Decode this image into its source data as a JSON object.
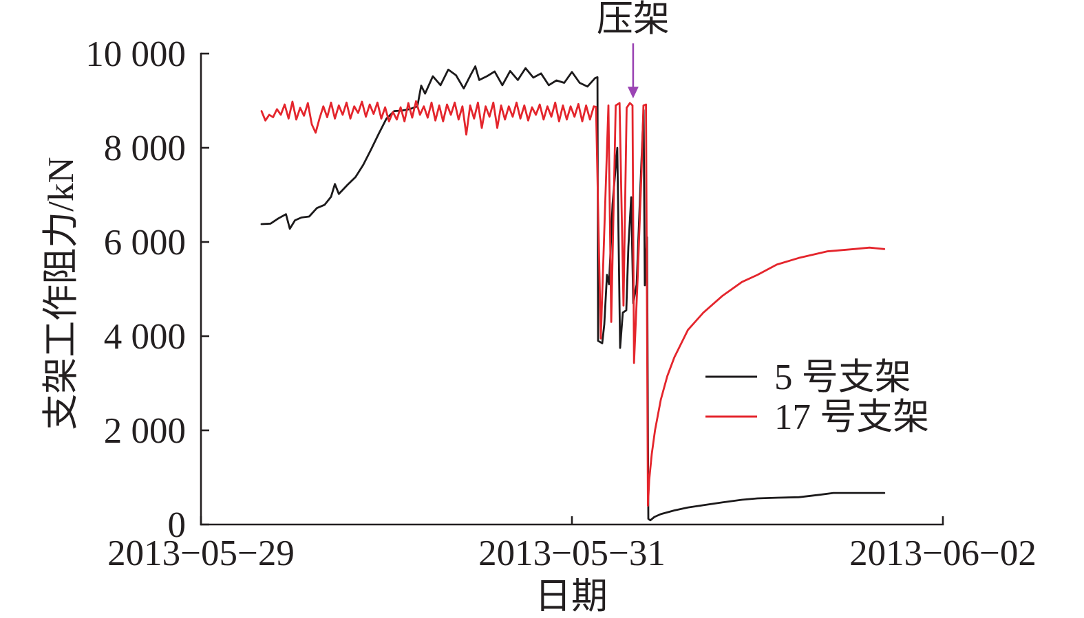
{
  "chart_data": {
    "type": "line",
    "xlabel": "日期",
    "ylabel": "支架工作阻力/kN",
    "xlim": [
      "2013-05-29 00:00",
      "2013-06-02 00:00"
    ],
    "ylim": [
      0,
      10000
    ],
    "grid": false,
    "legend": {
      "position": "right"
    },
    "xticks": [
      {
        "value": "2013-05-29 00:00",
        "label": "2013−05−29"
      },
      {
        "value": "2013-05-31 00:00",
        "label": "2013−05−31"
      },
      {
        "value": "2013-06-02 00:00",
        "label": "2013−06−02"
      }
    ],
    "yticks": [
      {
        "value": 0,
        "label": "0"
      },
      {
        "value": 2000,
        "label": "2 000"
      },
      {
        "value": 4000,
        "label": "4 000"
      },
      {
        "value": 6000,
        "label": "6 000"
      },
      {
        "value": 8000,
        "label": "8 000"
      },
      {
        "value": 10000,
        "label": "10 000"
      }
    ],
    "annotations": [
      {
        "text": "压架",
        "x": "2013-05-31 07:55",
        "y": 9050,
        "arrow": "down",
        "color": "#9b44b4"
      }
    ],
    "series": [
      {
        "name": "5 号支架",
        "color": "#1c1a1b",
        "points": [
          [
            "2013-05-29 07:50",
            6380
          ],
          [
            "2013-05-29 09:00",
            6390
          ],
          [
            "2013-05-29 10:00",
            6500
          ],
          [
            "2013-05-29 11:00",
            6590
          ],
          [
            "2013-05-29 11:30",
            6280
          ],
          [
            "2013-05-29 12:10",
            6460
          ],
          [
            "2013-05-29 13:00",
            6520
          ],
          [
            "2013-05-29 14:00",
            6540
          ],
          [
            "2013-05-29 15:00",
            6720
          ],
          [
            "2013-05-29 16:00",
            6790
          ],
          [
            "2013-05-29 16:50",
            6960
          ],
          [
            "2013-05-29 17:20",
            7230
          ],
          [
            "2013-05-29 17:50",
            7020
          ],
          [
            "2013-05-29 19:00",
            7220
          ],
          [
            "2013-05-29 20:00",
            7380
          ],
          [
            "2013-05-29 21:00",
            7640
          ],
          [
            "2013-05-29 22:00",
            7960
          ],
          [
            "2013-05-29 23:00",
            8300
          ],
          [
            "2013-05-30 00:00",
            8620
          ],
          [
            "2013-05-30 01:00",
            8780
          ],
          [
            "2013-05-30 02:00",
            8790
          ],
          [
            "2013-05-30 03:00",
            8820
          ],
          [
            "2013-05-30 04:00",
            8880
          ],
          [
            "2013-05-30 04:30",
            9320
          ],
          [
            "2013-05-30 05:00",
            9150
          ],
          [
            "2013-05-30 06:00",
            9520
          ],
          [
            "2013-05-30 07:00",
            9330
          ],
          [
            "2013-05-30 08:00",
            9660
          ],
          [
            "2013-05-30 09:00",
            9540
          ],
          [
            "2013-05-30 10:00",
            9260
          ],
          [
            "2013-05-30 11:00",
            9580
          ],
          [
            "2013-05-30 11:30",
            9730
          ],
          [
            "2013-05-30 12:00",
            9440
          ],
          [
            "2013-05-30 13:00",
            9520
          ],
          [
            "2013-05-30 14:00",
            9620
          ],
          [
            "2013-05-30 15:00",
            9330
          ],
          [
            "2013-05-30 16:00",
            9630
          ],
          [
            "2013-05-30 17:00",
            9440
          ],
          [
            "2013-05-30 18:00",
            9690
          ],
          [
            "2013-05-30 19:00",
            9490
          ],
          [
            "2013-05-30 20:00",
            9580
          ],
          [
            "2013-05-30 21:00",
            9330
          ],
          [
            "2013-05-30 22:00",
            9430
          ],
          [
            "2013-05-30 23:00",
            9380
          ],
          [
            "2013-05-31 00:00",
            9610
          ],
          [
            "2013-05-31 01:00",
            9380
          ],
          [
            "2013-05-31 02:00",
            9300
          ],
          [
            "2013-05-31 03:00",
            9480
          ],
          [
            "2013-05-31 03:18",
            9500
          ],
          [
            "2013-05-31 03:23",
            3900
          ],
          [
            "2013-05-31 03:55",
            3850
          ],
          [
            "2013-05-31 04:11",
            4250
          ],
          [
            "2013-05-31 04:32",
            5300
          ],
          [
            "2013-05-31 04:48",
            5100
          ],
          [
            "2013-05-31 05:15",
            6800
          ],
          [
            "2013-05-31 05:52",
            8000
          ],
          [
            "2013-05-31 06:14",
            3750
          ],
          [
            "2013-05-31 06:35",
            4500
          ],
          [
            "2013-05-31 07:02",
            4550
          ],
          [
            "2013-05-31 07:18",
            5900
          ],
          [
            "2013-05-31 07:40",
            6950
          ],
          [
            "2013-05-31 07:56",
            4700
          ],
          [
            "2013-05-31 08:22",
            5100
          ],
          [
            "2013-05-31 08:49",
            7000
          ],
          [
            "2013-05-31 09:16",
            8800
          ],
          [
            "2013-05-31 09:26",
            5080
          ],
          [
            "2013-05-31 09:43",
            6100
          ],
          [
            "2013-05-31 09:53",
            120
          ],
          [
            "2013-05-31 10:09",
            90
          ],
          [
            "2013-05-31 10:40",
            160
          ],
          [
            "2013-05-31 11:30",
            220
          ],
          [
            "2013-05-31 13:15",
            300
          ],
          [
            "2013-05-31 15:00",
            360
          ],
          [
            "2013-05-31 17:00",
            410
          ],
          [
            "2013-05-31 19:30",
            470
          ],
          [
            "2013-05-31 22:00",
            525
          ],
          [
            "2013-06-01 00:00",
            555
          ],
          [
            "2013-06-01 02:40",
            570
          ],
          [
            "2013-06-01 05:20",
            580
          ],
          [
            "2013-06-01 08:00",
            630
          ],
          [
            "2013-06-01 09:50",
            670
          ],
          [
            "2013-06-01 16:25",
            670
          ]
        ]
      },
      {
        "name": "17 号支架",
        "color": "#e4252c",
        "points": [
          [
            "2013-05-29 07:50",
            8780
          ],
          [
            "2013-05-29 08:20",
            8580
          ],
          [
            "2013-05-29 08:50",
            8700
          ],
          [
            "2013-05-29 09:20",
            8650
          ],
          [
            "2013-05-29 09:50",
            8820
          ],
          [
            "2013-05-29 10:20",
            8700
          ],
          [
            "2013-05-29 10:50",
            8920
          ],
          [
            "2013-05-29 11:20",
            8620
          ],
          [
            "2013-05-29 11:50",
            8980
          ],
          [
            "2013-05-29 12:20",
            8600
          ],
          [
            "2013-05-29 12:50",
            8850
          ],
          [
            "2013-05-29 13:20",
            8680
          ],
          [
            "2013-05-29 13:50",
            8950
          ],
          [
            "2013-05-29 14:20",
            8500
          ],
          [
            "2013-05-29 14:50",
            8320
          ],
          [
            "2013-05-29 15:20",
            8620
          ],
          [
            "2013-05-29 15:50",
            8880
          ],
          [
            "2013-05-29 16:20",
            8650
          ],
          [
            "2013-05-29 16:50",
            8960
          ],
          [
            "2013-05-29 17:20",
            8620
          ],
          [
            "2013-05-29 17:50",
            8900
          ],
          [
            "2013-05-29 18:20",
            8700
          ],
          [
            "2013-05-29 18:50",
            8960
          ],
          [
            "2013-05-29 19:20",
            8620
          ],
          [
            "2013-05-29 19:50",
            8880
          ],
          [
            "2013-05-29 20:20",
            8740
          ],
          [
            "2013-05-29 20:50",
            8980
          ],
          [
            "2013-05-29 21:20",
            8660
          ],
          [
            "2013-05-29 21:50",
            8920
          ],
          [
            "2013-05-29 22:20",
            8720
          ],
          [
            "2013-05-29 22:50",
            8960
          ],
          [
            "2013-05-29 23:20",
            8620
          ],
          [
            "2013-05-29 23:50",
            8860
          ],
          [
            "2013-05-30 00:20",
            8560
          ],
          [
            "2013-05-30 00:50",
            8760
          ],
          [
            "2013-05-30 01:20",
            8600
          ],
          [
            "2013-05-30 01:50",
            8860
          ],
          [
            "2013-05-30 02:20",
            8560
          ],
          [
            "2013-05-30 02:50",
            8950
          ],
          [
            "2013-05-30 03:20",
            8640
          ],
          [
            "2013-05-30 03:50",
            8990
          ],
          [
            "2013-05-30 04:20",
            8700
          ],
          [
            "2013-05-30 04:50",
            8880
          ],
          [
            "2013-05-30 05:20",
            8640
          ],
          [
            "2013-05-30 05:50",
            8960
          ],
          [
            "2013-05-30 06:20",
            8580
          ],
          [
            "2013-05-30 06:50",
            8900
          ],
          [
            "2013-05-30 07:20",
            8560
          ],
          [
            "2013-05-30 07:50",
            8920
          ],
          [
            "2013-05-30 08:20",
            8700
          ],
          [
            "2013-05-30 08:50",
            8960
          ],
          [
            "2013-05-30 09:20",
            8600
          ],
          [
            "2013-05-30 09:50",
            8880
          ],
          [
            "2013-05-30 10:20",
            8280
          ],
          [
            "2013-05-30 10:50",
            8900
          ],
          [
            "2013-05-30 11:20",
            8620
          ],
          [
            "2013-05-30 11:50",
            8960
          ],
          [
            "2013-05-30 12:20",
            8420
          ],
          [
            "2013-05-30 12:50",
            8880
          ],
          [
            "2013-05-30 13:20",
            8660
          ],
          [
            "2013-05-30 13:50",
            8960
          ],
          [
            "2013-05-30 14:20",
            8420
          ],
          [
            "2013-05-30 14:50",
            8900
          ],
          [
            "2013-05-30 15:20",
            8600
          ],
          [
            "2013-05-30 15:50",
            8880
          ],
          [
            "2013-05-30 16:20",
            8660
          ],
          [
            "2013-05-30 16:50",
            8960
          ],
          [
            "2013-05-30 17:20",
            8620
          ],
          [
            "2013-05-30 17:50",
            8900
          ],
          [
            "2013-05-30 18:20",
            8580
          ],
          [
            "2013-05-30 18:50",
            8860
          ],
          [
            "2013-05-30 19:20",
            8700
          ],
          [
            "2013-05-30 19:50",
            8920
          ],
          [
            "2013-05-30 20:20",
            8600
          ],
          [
            "2013-05-30 20:50",
            8880
          ],
          [
            "2013-05-30 21:20",
            8660
          ],
          [
            "2013-05-30 21:50",
            8960
          ],
          [
            "2013-05-30 22:20",
            8560
          ],
          [
            "2013-05-30 22:50",
            8900
          ],
          [
            "2013-05-30 23:20",
            8600
          ],
          [
            "2013-05-30 23:50",
            8880
          ],
          [
            "2013-05-31 00:20",
            8660
          ],
          [
            "2013-05-31 00:50",
            8930
          ],
          [
            "2013-05-31 01:20",
            8560
          ],
          [
            "2013-05-31 01:50",
            8900
          ],
          [
            "2013-05-31 02:20",
            8600
          ],
          [
            "2013-05-31 02:50",
            8880
          ],
          [
            "2013-05-31 03:07",
            8870
          ],
          [
            "2013-05-31 03:44",
            3950
          ],
          [
            "2013-05-31 04:43",
            8900
          ],
          [
            "2013-05-31 05:05",
            4300
          ],
          [
            "2013-05-31 05:40",
            8900
          ],
          [
            "2013-05-31 06:10",
            8950
          ],
          [
            "2013-05-31 06:40",
            4650
          ],
          [
            "2013-05-31 07:05",
            8850
          ],
          [
            "2013-05-31 07:30",
            8950
          ],
          [
            "2013-05-31 07:50",
            8900
          ],
          [
            "2013-05-31 08:02",
            3430
          ],
          [
            "2013-05-31 08:30",
            5200
          ],
          [
            "2013-05-31 09:00",
            7500
          ],
          [
            "2013-05-31 09:15",
            8900
          ],
          [
            "2013-05-31 09:35",
            8920
          ],
          [
            "2013-05-31 09:50",
            400
          ],
          [
            "2013-05-31 10:00",
            950
          ],
          [
            "2013-05-31 10:20",
            1500
          ],
          [
            "2013-05-31 10:45",
            2000
          ],
          [
            "2013-05-31 11:30",
            2650
          ],
          [
            "2013-05-31 12:20",
            3150
          ],
          [
            "2013-05-31 13:15",
            3550
          ],
          [
            "2013-05-31 15:00",
            4130
          ],
          [
            "2013-05-31 17:00",
            4500
          ],
          [
            "2013-05-31 19:30",
            4860
          ],
          [
            "2013-05-31 22:00",
            5150
          ],
          [
            "2013-06-01 00:00",
            5300
          ],
          [
            "2013-06-01 02:30",
            5520
          ],
          [
            "2013-06-01 05:20",
            5660
          ],
          [
            "2013-06-01 09:00",
            5800
          ],
          [
            "2013-06-01 12:30",
            5850
          ],
          [
            "2013-06-01 14:30",
            5880
          ],
          [
            "2013-06-01 16:25",
            5850
          ]
        ]
      }
    ]
  }
}
